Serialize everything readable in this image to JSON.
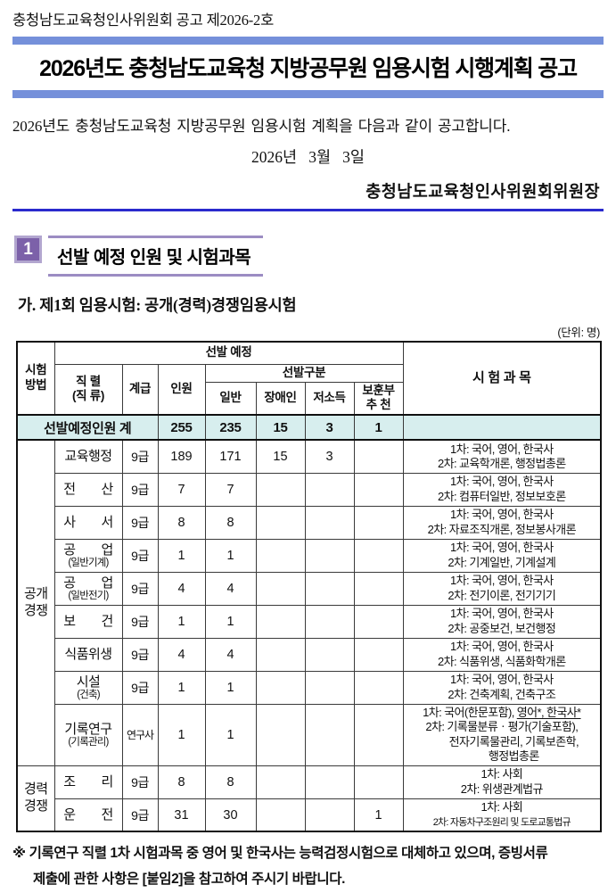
{
  "notice": "충청남도교육청인사위원회 공고 제2026-2호",
  "title": "2026년도 충청남도교육청 지방공무원 임용시험 시행계획 공고",
  "intro": "2026년도 충청남도교육청 지방공무원 임용시험 계획을 다음과 같이 공고합니다.",
  "date": "2026년   3월   3일",
  "signer": "충청남도교육청인사위원회위원장",
  "section": {
    "number": "1",
    "title": "선발 예정 인원 및 시험과목"
  },
  "subsection": "가. 제1회 임용시험: 공개(경력)경쟁임용시험",
  "unit_note": "(단위: 명)",
  "colors": {
    "title_bar_blue": "#7590DA",
    "rule_blue": "#2A2ACD",
    "badge_purple": "#7C61A9",
    "badge_border_purple": "#B2A6CF",
    "heading_line_purple": "#9C8CC3",
    "total_row_bg": "#D7EEEE"
  },
  "table": {
    "header": {
      "method": "시험\n방법",
      "selection_planned": "선발 예정",
      "series": "직 렬\n(직 류)",
      "grade": "계급",
      "count": "인원",
      "selection_category": "선발구분",
      "general": "일반",
      "disabled": "장애인",
      "low_income": "저소득",
      "veterans": "보훈부\n추 천",
      "subjects": "시 험 과 목"
    },
    "total_row": {
      "label": "선발예정인원 계",
      "count": "255",
      "general": "235",
      "disabled": "15",
      "low_income": "3",
      "veterans": "1",
      "subjects": ""
    },
    "groups": [
      {
        "name": "공개\n경쟁",
        "rows": [
          {
            "series": {
              "l1": "교육행정"
            },
            "grade": "9급",
            "count": "189",
            "general": "171",
            "disabled": "15",
            "low_income": "3",
            "veterans": "",
            "subjects": [
              {
                "t": "1차: 국어, 영어, 한국사"
              },
              {
                "t": "2차: 교육학개론, 행정법총론"
              }
            ]
          },
          {
            "series": {
              "l1": "전　　산"
            },
            "grade": "9급",
            "count": "7",
            "general": "7",
            "disabled": "",
            "low_income": "",
            "veterans": "",
            "subjects": [
              {
                "t": "1차: 국어, 영어, 한국사"
              },
              {
                "t": "2차: 컴퓨터일반, 정보보호론"
              }
            ]
          },
          {
            "series": {
              "l1": "사　　서"
            },
            "grade": "9급",
            "count": "8",
            "general": "8",
            "disabled": "",
            "low_income": "",
            "veterans": "",
            "subjects": [
              {
                "t": "1차: 국어, 영어, 한국사"
              },
              {
                "t": "2차: 자료조직개론, 정보봉사개론"
              }
            ]
          },
          {
            "series": {
              "l1": "공　　업",
              "l2": "(일반기계)"
            },
            "grade": "9급",
            "count": "1",
            "general": "1",
            "disabled": "",
            "low_income": "",
            "veterans": "",
            "subjects": [
              {
                "t": "1차: 국어, 영어, 한국사"
              },
              {
                "t": "2차: 기계일반, 기계설계"
              }
            ]
          },
          {
            "series": {
              "l1": "공　　업",
              "l2": "(일반전기)"
            },
            "grade": "9급",
            "count": "4",
            "general": "4",
            "disabled": "",
            "low_income": "",
            "veterans": "",
            "subjects": [
              {
                "t": "1차: 국어, 영어, 한국사"
              },
              {
                "t": "2차: 전기이론, 전기기기"
              }
            ]
          },
          {
            "series": {
              "l1": "보　　건"
            },
            "grade": "9급",
            "count": "1",
            "general": "1",
            "disabled": "",
            "low_income": "",
            "veterans": "",
            "subjects": [
              {
                "t": "1차: 국어, 영어, 한국사"
              },
              {
                "t": "2차: 공중보건, 보건행정"
              }
            ]
          },
          {
            "series": {
              "l1": "식품위생"
            },
            "grade": "9급",
            "count": "4",
            "general": "4",
            "disabled": "",
            "low_income": "",
            "veterans": "",
            "subjects": [
              {
                "t": "1차: 국어, 영어, 한국사"
              },
              {
                "t": "2차: 식품위생, 식품화학개론"
              }
            ]
          },
          {
            "series": {
              "l1": "시설",
              "l2": "(건축)"
            },
            "grade": "9급",
            "count": "1",
            "general": "1",
            "disabled": "",
            "low_income": "",
            "veterans": "",
            "subjects": [
              {
                "t": "1차: 국어, 영어, 한국사"
              },
              {
                "t": "2차: 건축계획, 건축구조"
              }
            ]
          },
          {
            "series": {
              "l1": "기록연구",
              "l2": "(기록관리)"
            },
            "grade": "연구사",
            "count": "1",
            "general": "1",
            "disabled": "",
            "low_income": "",
            "veterans": "",
            "subjects": [
              {
                "t": "1차: 국어(한문포함), ",
                "u": "영어*, 한국사*"
              },
              {
                "t": "2차: 기록물분류ㆍ평가(기술포함),"
              },
              {
                "t": "전자기록물관리, 기록보존학,",
                "indent": true
              },
              {
                "t": "행정법총론",
                "indent": true
              }
            ]
          }
        ]
      },
      {
        "name": "경력\n경쟁",
        "rows": [
          {
            "series": {
              "l1": "조　　리"
            },
            "grade": "9급",
            "count": "8",
            "general": "8",
            "disabled": "",
            "low_income": "",
            "veterans": "",
            "subjects": [
              {
                "t": "1차: 사회"
              },
              {
                "t": "2차: 위생관계법규"
              }
            ]
          },
          {
            "series": {
              "l1": "운　　전"
            },
            "grade": "9급",
            "count": "31",
            "general": "30",
            "disabled": "",
            "low_income": "",
            "veterans": "1",
            "subjects": [
              {
                "t": "1차: 사회"
              },
              {
                "t": "2차: 자동차구조원리 및 도로교통법규",
                "small": true
              }
            ]
          }
        ]
      }
    ]
  },
  "footnote": "※ 기록연구 직렬 1차 시험과목 중 영어 및 한국사는 능력검정시험으로 대체하고 있으며, 증빙서류\n제출에 관한 사항은 [붙임2]을 참고하여 주시기 바랍니다."
}
